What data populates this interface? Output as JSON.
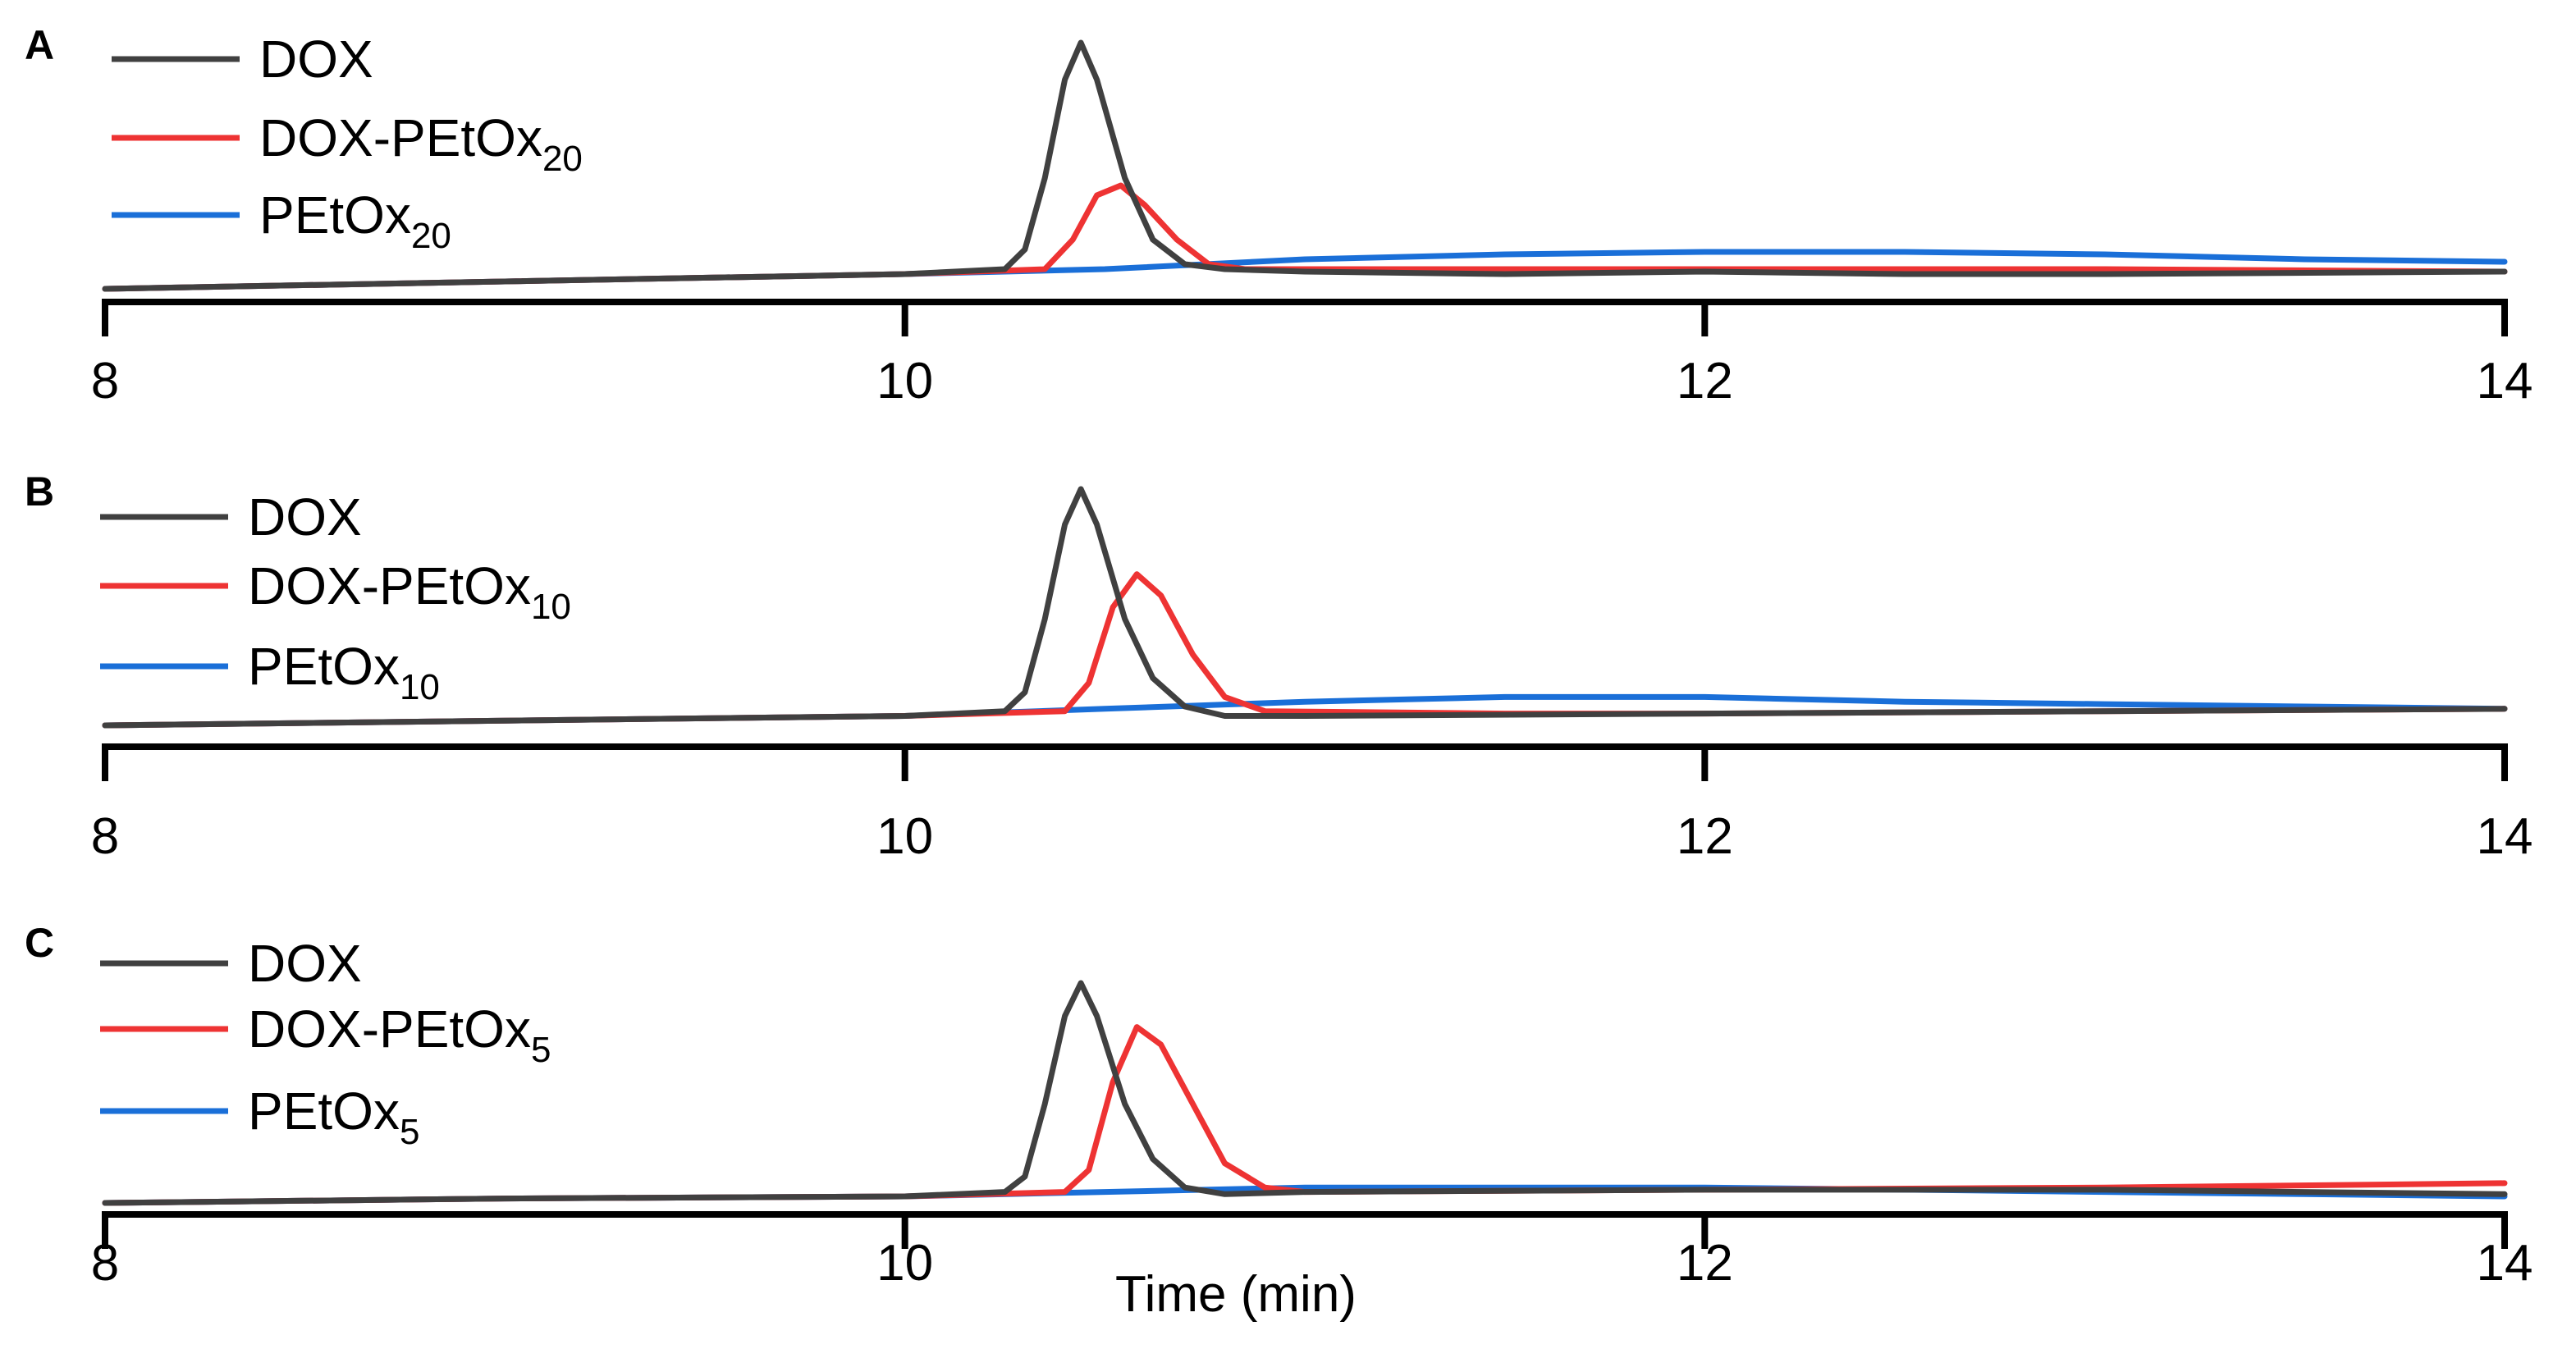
{
  "chart_data": [
    {
      "type": "line",
      "panel": "A",
      "xlabel": "",
      "ylabel": "",
      "xlim": [
        8,
        14
      ],
      "xticks": [
        "8",
        "10",
        "12",
        "14"
      ],
      "y_axis_shown": false,
      "legend_position": "top-left",
      "series": [
        {
          "name": "DOX",
          "color": "#404040",
          "points": [
            [
              8,
              0
            ],
            [
              9,
              0.03
            ],
            [
              10,
              0.06
            ],
            [
              10.25,
              0.08
            ],
            [
              10.3,
              0.16
            ],
            [
              10.35,
              0.45
            ],
            [
              10.4,
              0.85
            ],
            [
              10.44,
              1.0
            ],
            [
              10.48,
              0.85
            ],
            [
              10.55,
              0.45
            ],
            [
              10.62,
              0.2
            ],
            [
              10.7,
              0.1
            ],
            [
              10.8,
              0.08
            ],
            [
              11,
              0.07
            ],
            [
              11.5,
              0.06
            ],
            [
              12,
              0.07
            ],
            [
              12.5,
              0.06
            ],
            [
              13,
              0.06
            ],
            [
              14,
              0.07
            ]
          ]
        },
        {
          "name": "DOX-PEtOx",
          "subscript": "20",
          "color": "#ee3333",
          "points": [
            [
              8,
              0
            ],
            [
              9,
              0.03
            ],
            [
              10,
              0.06
            ],
            [
              10.35,
              0.08
            ],
            [
              10.42,
              0.2
            ],
            [
              10.48,
              0.38
            ],
            [
              10.54,
              0.42
            ],
            [
              10.6,
              0.34
            ],
            [
              10.68,
              0.2
            ],
            [
              10.76,
              0.1
            ],
            [
              10.85,
              0.08
            ],
            [
              11.5,
              0.08
            ],
            [
              12,
              0.08
            ],
            [
              13,
              0.08
            ],
            [
              14,
              0.07
            ]
          ]
        },
        {
          "name": "PEtOx",
          "subscript": "20",
          "color": "#1a6fd8",
          "points": [
            [
              8,
              0
            ],
            [
              9,
              0.03
            ],
            [
              10,
              0.06
            ],
            [
              10.5,
              0.08
            ],
            [
              11,
              0.12
            ],
            [
              11.5,
              0.14
            ],
            [
              12,
              0.15
            ],
            [
              12.5,
              0.15
            ],
            [
              13,
              0.14
            ],
            [
              13.5,
              0.12
            ],
            [
              14,
              0.11
            ]
          ]
        }
      ]
    },
    {
      "type": "line",
      "panel": "B",
      "xlabel": "",
      "ylabel": "",
      "xlim": [
        8,
        14
      ],
      "xticks": [
        "8",
        "10",
        "12",
        "14"
      ],
      "y_axis_shown": false,
      "legend_position": "top-left",
      "series": [
        {
          "name": "DOX",
          "color": "#404040",
          "points": [
            [
              8,
              0
            ],
            [
              9,
              0.02
            ],
            [
              10,
              0.04
            ],
            [
              10.25,
              0.06
            ],
            [
              10.3,
              0.14
            ],
            [
              10.35,
              0.45
            ],
            [
              10.4,
              0.85
            ],
            [
              10.44,
              1.0
            ],
            [
              10.48,
              0.85
            ],
            [
              10.55,
              0.45
            ],
            [
              10.62,
              0.2
            ],
            [
              10.7,
              0.08
            ],
            [
              10.8,
              0.04
            ],
            [
              11,
              0.04
            ],
            [
              12,
              0.05
            ],
            [
              13,
              0.06
            ],
            [
              14,
              0.07
            ]
          ]
        },
        {
          "name": "DOX-PEtOx",
          "subscript": "10",
          "color": "#ee3333",
          "points": [
            [
              8,
              0
            ],
            [
              9,
              0.02
            ],
            [
              10,
              0.04
            ],
            [
              10.4,
              0.06
            ],
            [
              10.46,
              0.18
            ],
            [
              10.52,
              0.5
            ],
            [
              10.58,
              0.64
            ],
            [
              10.64,
              0.55
            ],
            [
              10.72,
              0.3
            ],
            [
              10.8,
              0.12
            ],
            [
              10.9,
              0.06
            ],
            [
              11.5,
              0.05
            ],
            [
              12,
              0.05
            ],
            [
              13,
              0.06
            ],
            [
              14,
              0.07
            ]
          ]
        },
        {
          "name": "PEtOx",
          "subscript": "10",
          "color": "#1a6fd8",
          "points": [
            [
              8,
              0
            ],
            [
              9,
              0.02
            ],
            [
              10,
              0.04
            ],
            [
              10.5,
              0.07
            ],
            [
              11,
              0.1
            ],
            [
              11.5,
              0.12
            ],
            [
              12,
              0.12
            ],
            [
              12.5,
              0.1
            ],
            [
              13,
              0.09
            ],
            [
              13.5,
              0.08
            ],
            [
              14,
              0.07
            ]
          ]
        }
      ]
    },
    {
      "type": "line",
      "panel": "C",
      "xlabel": "Time (min)",
      "ylabel": "",
      "xlim": [
        8,
        14
      ],
      "xticks": [
        "8",
        "10",
        "12",
        "14"
      ],
      "y_axis_shown": false,
      "legend_position": "top-left",
      "series": [
        {
          "name": "DOX",
          "color": "#404040",
          "points": [
            [
              8,
              0
            ],
            [
              9,
              0.02
            ],
            [
              10,
              0.03
            ],
            [
              10.25,
              0.05
            ],
            [
              10.3,
              0.12
            ],
            [
              10.35,
              0.45
            ],
            [
              10.4,
              0.85
            ],
            [
              10.44,
              1.0
            ],
            [
              10.48,
              0.85
            ],
            [
              10.55,
              0.45
            ],
            [
              10.62,
              0.2
            ],
            [
              10.7,
              0.07
            ],
            [
              10.8,
              0.04
            ],
            [
              11,
              0.05
            ],
            [
              12,
              0.06
            ],
            [
              13,
              0.06
            ],
            [
              14,
              0.04
            ]
          ]
        },
        {
          "name": "DOX-PEtOx",
          "subscript": "5",
          "color": "#ee3333",
          "points": [
            [
              8,
              0
            ],
            [
              9,
              0.02
            ],
            [
              10,
              0.03
            ],
            [
              10.4,
              0.05
            ],
            [
              10.46,
              0.15
            ],
            [
              10.52,
              0.55
            ],
            [
              10.58,
              0.8
            ],
            [
              10.64,
              0.72
            ],
            [
              10.72,
              0.45
            ],
            [
              10.8,
              0.18
            ],
            [
              10.9,
              0.07
            ],
            [
              11,
              0.05
            ],
            [
              12,
              0.06
            ],
            [
              13,
              0.07
            ],
            [
              14,
              0.09
            ]
          ]
        },
        {
          "name": "PEtOx",
          "subscript": "5",
          "color": "#1a6fd8",
          "points": [
            [
              8,
              0
            ],
            [
              9,
              0.02
            ],
            [
              10,
              0.03
            ],
            [
              10.5,
              0.05
            ],
            [
              11,
              0.07
            ],
            [
              11.5,
              0.07
            ],
            [
              12,
              0.07
            ],
            [
              12.5,
              0.06
            ],
            [
              13,
              0.05
            ],
            [
              13.5,
              0.04
            ],
            [
              14,
              0.03
            ]
          ]
        }
      ]
    }
  ]
}
